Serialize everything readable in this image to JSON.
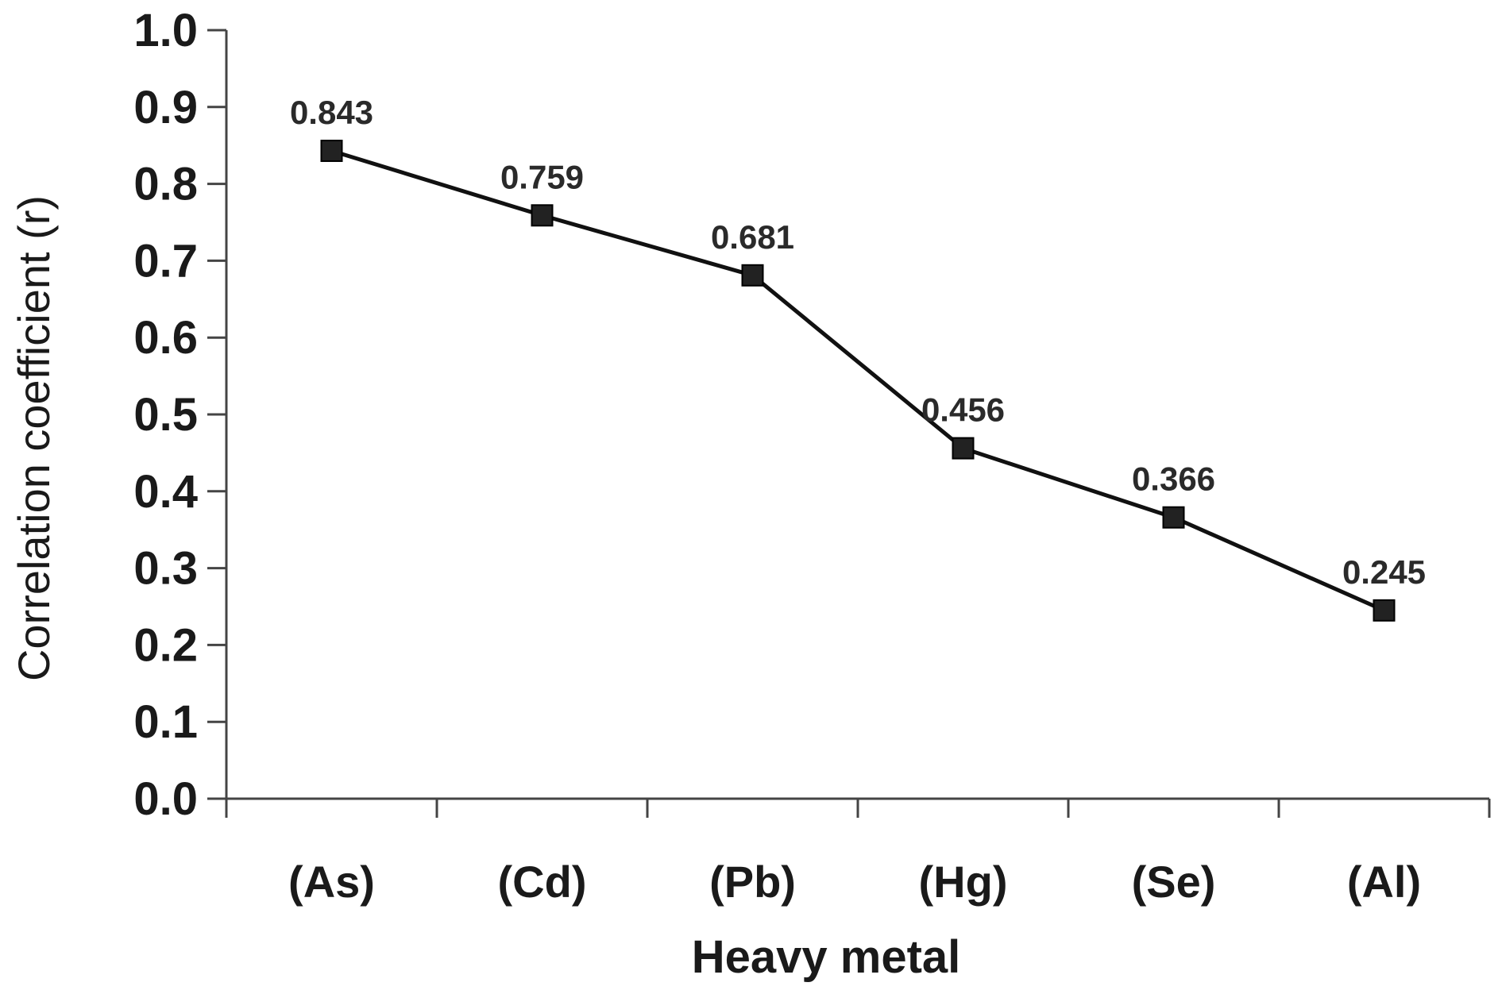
{
  "chart_data": {
    "type": "line",
    "title": "",
    "xlabel": "Heavy metal",
    "ylabel": "Correlation coefficient (r)",
    "ylim": [
      0.0,
      1.0
    ],
    "yticks": [
      "0.0",
      "0.1",
      "0.2",
      "0.3",
      "0.4",
      "0.5",
      "0.6",
      "0.7",
      "0.8",
      "0.9",
      "1.0"
    ],
    "categories": [
      "(As)",
      "(Cd)",
      "(Pb)",
      "(Hg)",
      "(Se)",
      "(Al)"
    ],
    "series": [
      {
        "name": "Correlation coefficient",
        "values": [
          0.843,
          0.759,
          0.681,
          0.456,
          0.366,
          0.245
        ],
        "labels": [
          "0.843",
          "0.759",
          "0.681",
          "0.456",
          "0.366",
          "0.245"
        ],
        "color": "#111111",
        "marker": "square"
      }
    ],
    "grid": false,
    "legend": "none"
  }
}
